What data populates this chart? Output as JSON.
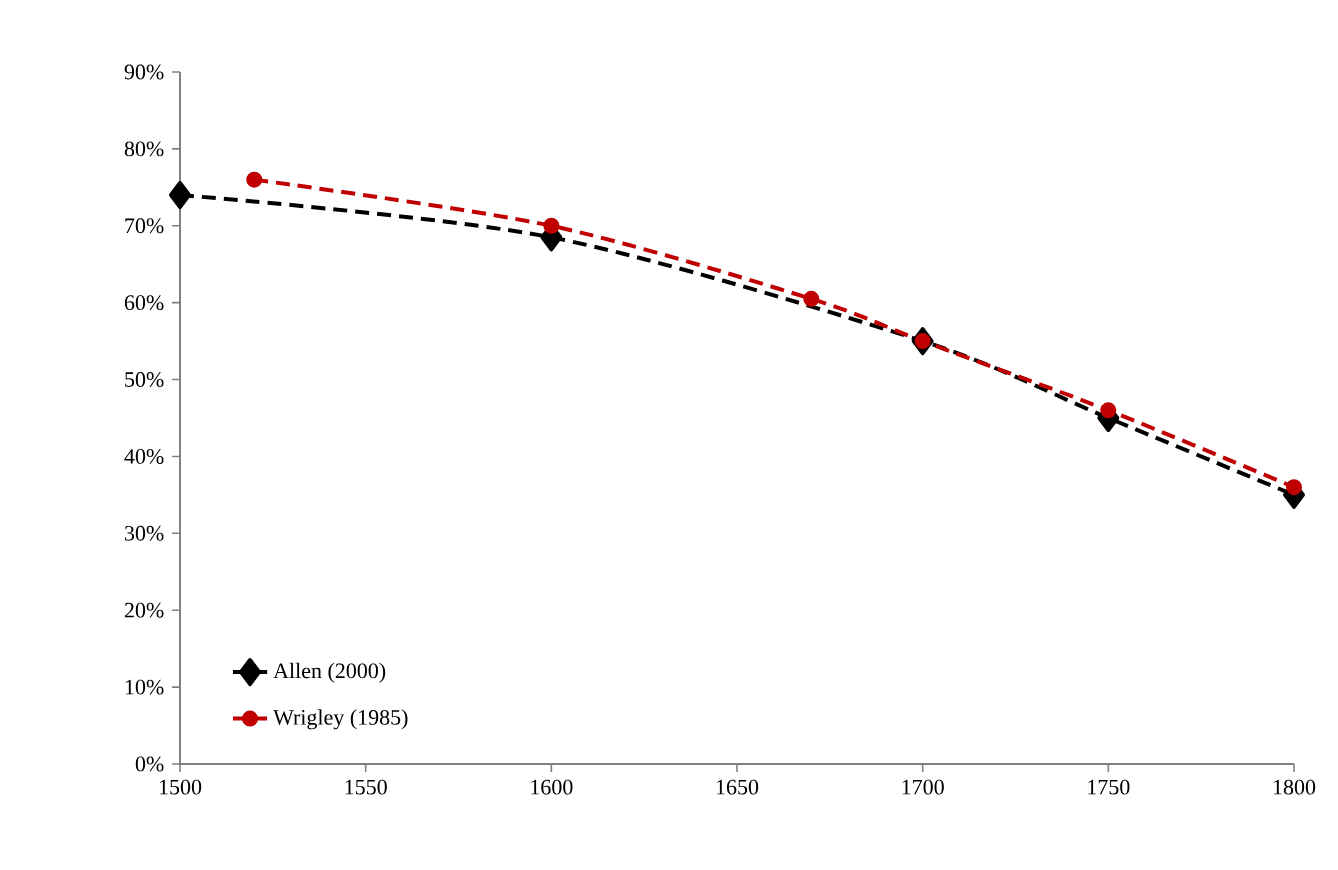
{
  "chart_data": {
    "type": "line",
    "xlim": [
      1500,
      1800
    ],
    "xticks": [
      1500,
      1550,
      1600,
      1650,
      1700,
      1750,
      1800
    ],
    "ylim": [
      0,
      90
    ],
    "yticks": [
      {
        "value": 0,
        "label": "0%"
      },
      {
        "value": 10,
        "label": "10%"
      },
      {
        "value": 20,
        "label": "20%"
      },
      {
        "value": 30,
        "label": "30%"
      },
      {
        "value": 40,
        "label": "40%"
      },
      {
        "value": 50,
        "label": "50%"
      },
      {
        "value": 60,
        "label": "60%"
      },
      {
        "value": 70,
        "label": "70%"
      },
      {
        "value": 80,
        "label": "80%"
      },
      {
        "value": 90,
        "label": "90%"
      }
    ],
    "line_style": "dashed",
    "legend": "bottom left",
    "grid": false,
    "series": [
      {
        "name": "Allen (2000)",
        "color": "#000000",
        "marker": "diamond",
        "x": [
          1500,
          1600,
          1700,
          1750,
          1800
        ],
        "values": [
          74,
          68.5,
          55,
          45,
          35
        ]
      },
      {
        "name": "Wrigley (1985)",
        "color": "#c00000",
        "marker": "circle",
        "x": [
          1520,
          1600,
          1670,
          1700,
          1750,
          1800
        ],
        "values": [
          76,
          70,
          60.5,
          55,
          46,
          36
        ]
      }
    ]
  }
}
